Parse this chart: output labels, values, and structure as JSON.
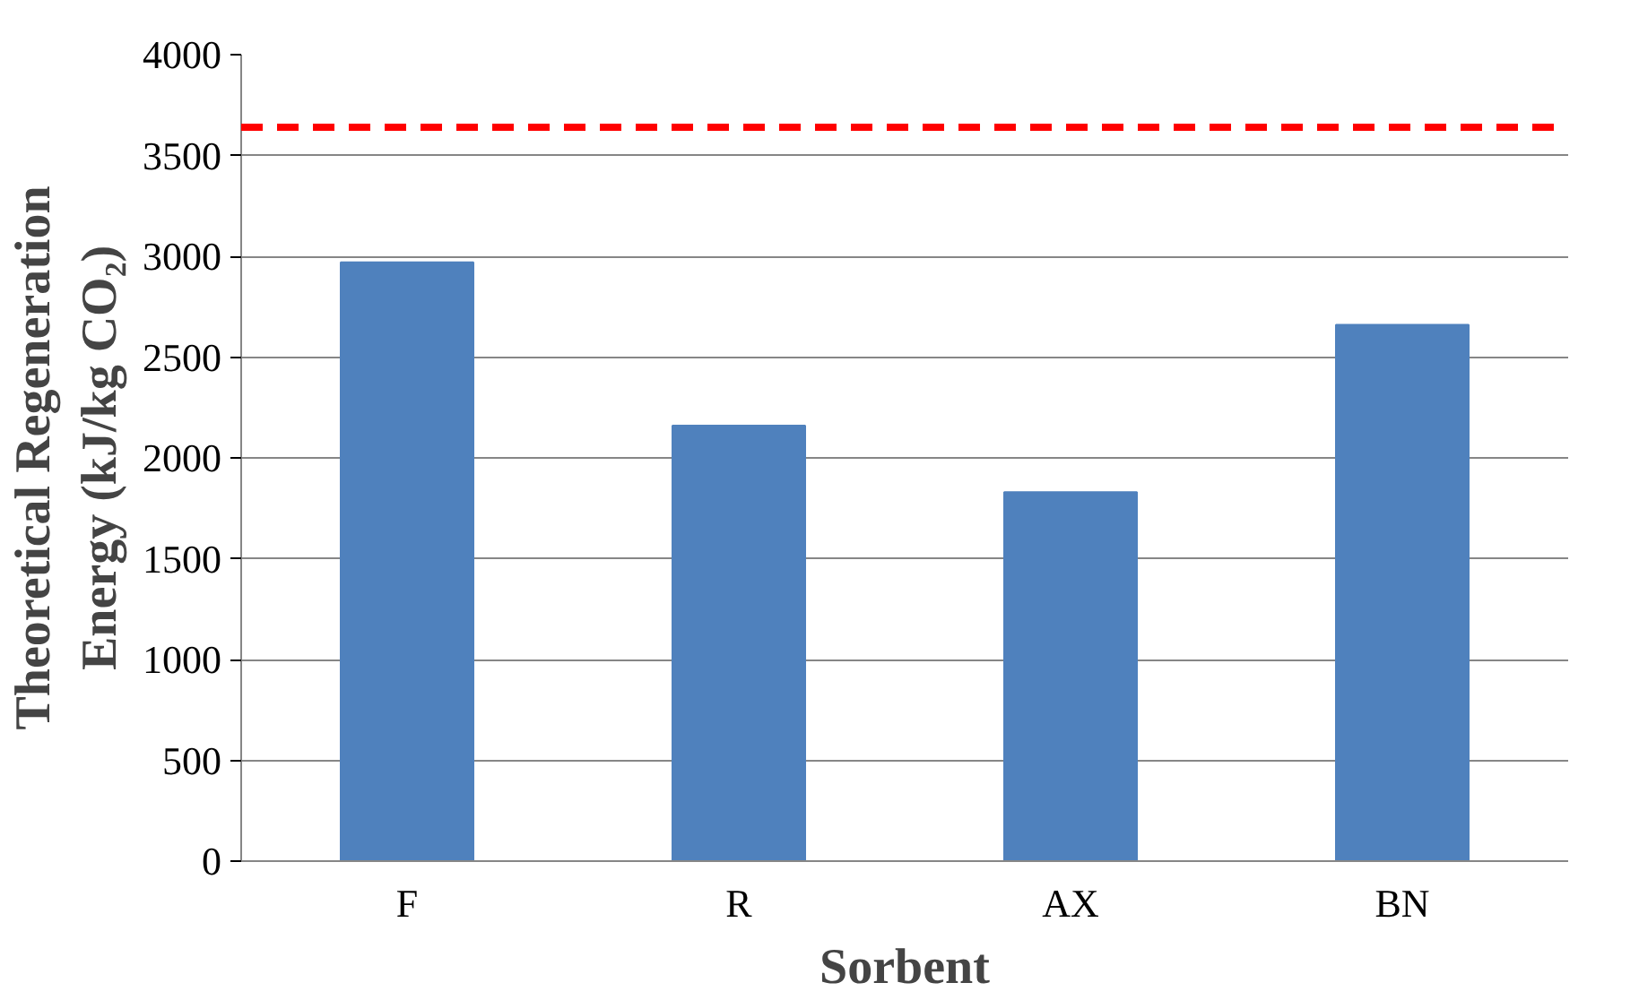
{
  "chart_data": {
    "type": "bar",
    "xlabel": "Sorbent",
    "ylabel": "Theoretical Regeneration\nEnergy (kJ/kg CO₂)",
    "categories": [
      "F",
      "R",
      "AX",
      "BN"
    ],
    "values": [
      2970,
      2160,
      1830,
      2660
    ],
    "color": "#4f81bd",
    "ylim": [
      0,
      4000
    ],
    "yticks": [
      0,
      500,
      1000,
      1500,
      2000,
      2500,
      3000,
      3500,
      4000
    ],
    "grid": "y",
    "ref_lines": [
      {
        "axis": "y",
        "value": 3640,
        "color": "#ff0000",
        "line_style": "dashed"
      }
    ]
  }
}
